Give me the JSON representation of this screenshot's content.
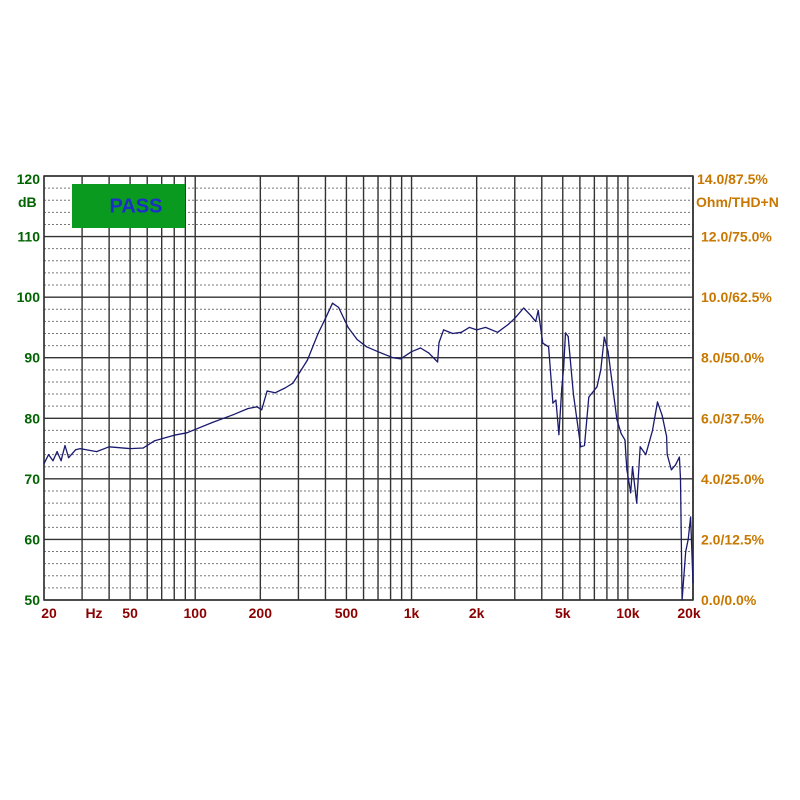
{
  "chart_data": {
    "type": "line",
    "badge": "PASS",
    "xscale": "log",
    "xlim": [
      20,
      20000
    ],
    "ylim": [
      50,
      120
    ],
    "ylabel_left": "dB",
    "ylabel_right": "Ohm/THD+N",
    "xlabel_unit": "Hz",
    "grid": true,
    "x_tick_labels": [
      {
        "value": 20,
        "label": "20"
      },
      {
        "value": 50,
        "label": "50"
      },
      {
        "value": 100,
        "label": "100"
      },
      {
        "value": 200,
        "label": "200"
      },
      {
        "value": 500,
        "label": "500"
      },
      {
        "value": 1000,
        "label": "1k"
      },
      {
        "value": 2000,
        "label": "2k"
      },
      {
        "value": 5000,
        "label": "5k"
      },
      {
        "value": 10000,
        "label": "10k"
      },
      {
        "value": 20000,
        "label": "20k"
      }
    ],
    "y_tick_labels_left": [
      "120",
      "110",
      "100",
      "90",
      "80",
      "70",
      "60",
      "50"
    ],
    "y_tick_values_left": [
      120,
      110,
      100,
      90,
      80,
      70,
      60,
      50
    ],
    "y_tick_labels_right": [
      "14.0/87.5%",
      "12.0/75.0%",
      "10.0/62.5%",
      "8.0/50.0%",
      "6.0/37.5%",
      "4.0/25.0%",
      "2.0/12.5%",
      "0.0/0.0%"
    ],
    "series": [
      {
        "color": "#1a1a6e",
        "x": [
          20,
          21,
          22,
          23,
          24,
          25,
          26,
          28,
          29.4,
          35,
          40,
          50,
          57.5,
          65,
          80,
          91.5,
          120,
          150,
          175,
          193,
          203,
          215,
          234,
          260,
          283,
          330,
          370,
          400,
          431,
          460,
          509,
          560,
          620,
          700,
          820,
          890,
          1000,
          1100,
          1200,
          1320,
          1340,
          1406,
          1550,
          1700,
          1850,
          2000,
          2200,
          2500,
          2800,
          3000,
          3300,
          3550,
          3750,
          3850,
          4044,
          4300,
          4500,
          4650,
          4800,
          4950,
          5050,
          5150,
          5300,
          5600,
          6050,
          6300,
          6600,
          7200,
          7500,
          7780,
          8100,
          8900,
          9300,
          9700,
          9800,
          9900,
          10300,
          10500,
          10980,
          11400,
          12100,
          13000,
          13700,
          14400,
          15100,
          15200,
          15900,
          16600,
          17300,
          17500,
          17800,
          18500,
          19000,
          19500,
          20000
        ],
        "y": [
          72.5,
          74,
          73,
          74.5,
          73,
          75.5,
          73.5,
          74.8,
          75,
          74.5,
          75.3,
          75,
          75.1,
          76.3,
          77.2,
          77.6,
          79.3,
          80.6,
          81.6,
          81.9,
          81.4,
          84.5,
          84.2,
          85,
          85.8,
          89.6,
          94,
          96.5,
          99,
          98.3,
          95,
          93,
          91.8,
          91,
          90,
          89.8,
          91,
          91.6,
          90.8,
          89.3,
          92.5,
          94.6,
          94,
          94.2,
          95,
          94.6,
          95,
          94.2,
          95.5,
          96.5,
          98.2,
          97,
          96,
          97.8,
          92.4,
          91.8,
          82.5,
          83,
          77.3,
          85,
          88.5,
          94.1,
          93.5,
          84,
          75.3,
          75.5,
          83.5,
          85.2,
          88,
          93.4,
          91,
          79.8,
          77.5,
          76.4,
          73.6,
          71.5,
          67.7,
          72,
          66,
          75.3,
          74,
          78,
          82.7,
          80.5,
          77,
          74,
          71.5,
          72.3,
          73.6,
          70,
          50,
          58,
          60,
          63.7,
          52.8
        ]
      }
    ]
  },
  "colors": {
    "left_axis": "#006400",
    "right_axis": "#c87800",
    "bottom_axis": "#8b0000",
    "badge_bg": "#0a9a1f",
    "badge_text": "#1c2fc8",
    "grid": "#333333"
  }
}
